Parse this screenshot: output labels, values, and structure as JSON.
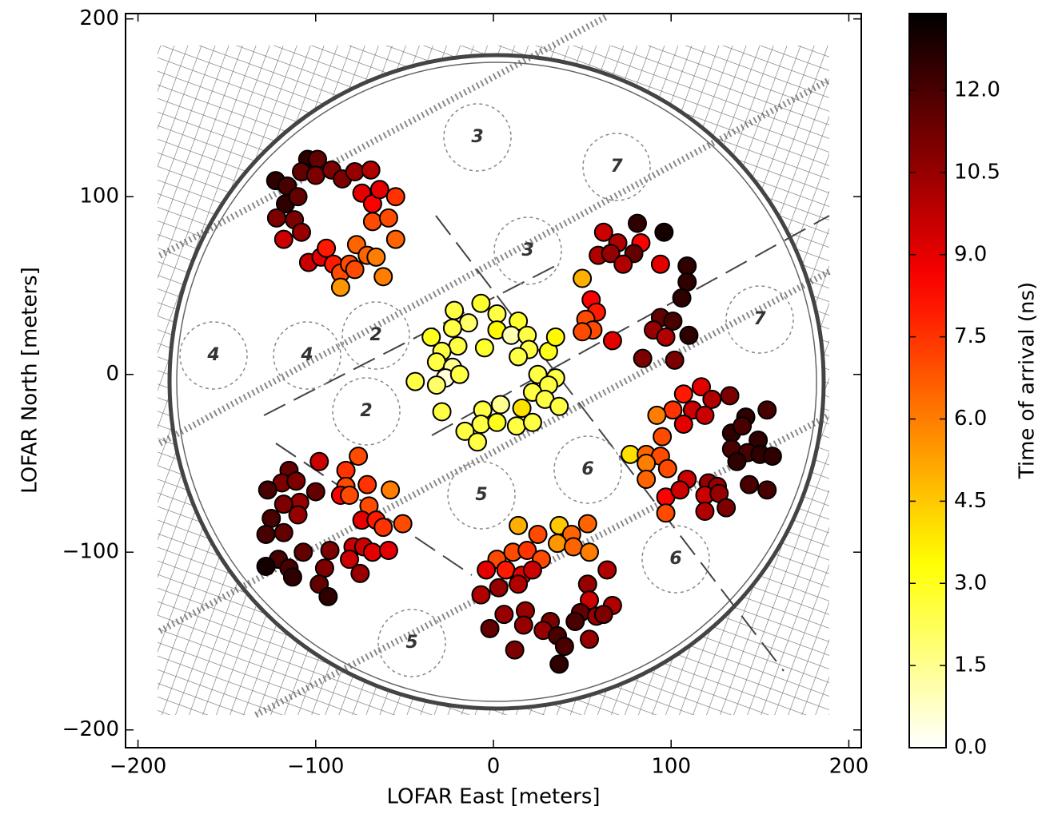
{
  "chart_data": {
    "type": "scatter",
    "xlabel": "LOFAR East [meters]",
    "ylabel": "LOFAR North [meters]",
    "colorbar_label": "Time of arrival (ns)",
    "colormap": "hot_r",
    "clim": [
      0,
      13.4
    ],
    "cticks": [
      {
        "value": 0,
        "label": "0.0"
      },
      1.5,
      {
        "value": 3,
        "label": "3.0"
      },
      4.5,
      {
        "value": 6,
        "label": "6.0"
      },
      7.5,
      {
        "value": 9,
        "label": "9.0"
      },
      10.5,
      {
        "value": 12,
        "label": "12.0"
      }
    ],
    "xlim": [
      -207,
      207
    ],
    "ylim": [
      -210,
      203
    ],
    "xticks": [
      {
        "value": -200,
        "label": "−200"
      },
      {
        "value": -100,
        "label": "−100"
      },
      0,
      100,
      200
    ],
    "yticks": [
      {
        "value": -200,
        "label": "−200"
      },
      {
        "value": -100,
        "label": "−100"
      },
      0,
      100,
      200
    ],
    "map_labels": [
      "3",
      "7",
      "3",
      "4",
      "4",
      "2",
      "2",
      "7",
      "5",
      "6",
      "5",
      "6"
    ],
    "x": [
      -104.5,
      -122.5,
      -116,
      -108,
      -99,
      -100,
      -91,
      -85,
      -78,
      -69,
      -117,
      -110,
      -122,
      -112,
      -108,
      -118,
      -74,
      -68,
      -64,
      -55,
      -68,
      -59,
      -55,
      -104,
      -97,
      -94,
      -90,
      -86,
      -81,
      -77,
      -71,
      -66,
      -78,
      -62,
      -86,
      81,
      96,
      62,
      70,
      83,
      59,
      66,
      79,
      73,
      94,
      109,
      109,
      106,
      50,
      55,
      58,
      52,
      56,
      50,
      67,
      94,
      101,
      90,
      110,
      97,
      84,
      102,
      -22,
      -7,
      2,
      -14,
      14,
      -23,
      2,
      10,
      19,
      -35,
      -20,
      -29,
      -5,
      20,
      31,
      35,
      14,
      -32,
      -23,
      -27,
      -19,
      -44,
      -32,
      25,
      35,
      31,
      22,
      29,
      37,
      4,
      -6,
      16,
      -29,
      -7,
      2,
      13,
      22,
      -16,
      -9,
      117,
      107,
      123,
      133,
      101,
      112,
      92,
      119,
      107,
      142,
      154,
      134,
      140,
      149,
      95,
      77,
      86,
      94,
      134,
      143,
      150,
      157,
      86,
      98,
      137,
      86,
      109,
      121,
      126,
      144,
      154,
      97,
      105,
      119,
      127,
      131,
      97,
      119,
      -98,
      -76,
      -115,
      -83,
      -119,
      -111,
      -100,
      -71,
      -58,
      -127,
      -83,
      -86,
      -81,
      -109,
      -118,
      -70,
      -125,
      -110,
      -74,
      -66,
      -62,
      -51,
      -128,
      -118,
      -92,
      -79,
      -73,
      -68,
      -59,
      -121,
      -107,
      -115,
      -81,
      -75,
      -128,
      -113,
      -95,
      -98,
      -93,
      14,
      37,
      53,
      25,
      44,
      36,
      45,
      54,
      2,
      11,
      19,
      27,
      -4,
      7,
      16,
      22,
      64,
      53,
      3,
      14,
      -7,
      54,
      67,
      6,
      18,
      49,
      58,
      46,
      62,
      32,
      17,
      28,
      -2,
      36,
      54,
      40,
      12,
      37
    ],
    "y": [
      121,
      109,
      106,
      114,
      121,
      112,
      115,
      110,
      114,
      115,
      96,
      100,
      88,
      87,
      80,
      76,
      102,
      96,
      104,
      100,
      86,
      88,
      76,
      63,
      66,
      71,
      62,
      57,
      62,
      73,
      67,
      66,
      59,
      55,
      49,
      85,
      80,
      80,
      74,
      74,
      67,
      68,
      68,
      62,
      62,
      61,
      52,
      43,
      54,
      42,
      35,
      31,
      25,
      24,
      19,
      32,
      30,
      25,
      22,
      21,
      9,
      8,
      36,
      40,
      34,
      29,
      30,
      26,
      25,
      22,
      22,
      21,
      16,
      13,
      15,
      14,
      13,
      21,
      10,
      7,
      4,
      -2,
      0,
      -4,
      -6,
      0,
      -2,
      -6,
      -10,
      -14,
      -18,
      -17,
      -20,
      -19,
      -21,
      -28,
      -27,
      -29,
      -27,
      -32,
      -38,
      -7,
      -11,
      -14,
      -12,
      -20,
      -20,
      -23,
      -23,
      -28,
      -24,
      -20,
      -33,
      -29,
      -37,
      -35,
      -45,
      -45,
      -46,
      -42,
      -44,
      -45,
      -46,
      -50,
      -53,
      -49,
      -59,
      -59,
      -61,
      -63,
      -62,
      -65,
      -69,
      -65,
      -68,
      -67,
      -75,
      -78,
      -77,
      -49,
      -46,
      -54,
      -54,
      -61,
      -60,
      -66,
      -62,
      -65,
      -65,
      -63,
      -68,
      -68,
      -72,
      -73,
      -74,
      -81,
      -79,
      -82,
      -82,
      -86,
      -84,
      -90,
      -89,
      -99,
      -97,
      -97,
      -100,
      -99,
      -104,
      -100,
      -109,
      -104,
      -112,
      -108,
      -114,
      -109,
      -118,
      -125,
      -85,
      -85,
      -84,
      -90,
      -90,
      -95,
      -97,
      -100,
      -104,
      -100,
      -99,
      -104,
      -110,
      -110,
      -113,
      -110,
      -110,
      -118,
      -120,
      -118,
      -124,
      -127,
      -130,
      -135,
      -133,
      -134,
      -136,
      -139,
      -135,
      -139,
      -141,
      -144,
      -143,
      -147,
      -149,
      -153,
      -155,
      -163
    ],
    "values": [
      12.5,
      12.5,
      12,
      11.5,
      11.5,
      11,
      11,
      11,
      10.5,
      10,
      12.5,
      11.5,
      11,
      11,
      10.5,
      9.5,
      9,
      8.5,
      9,
      7.5,
      7,
      7,
      6.5,
      9.5,
      9,
      8,
      8,
      7,
      7,
      6.5,
      6.5,
      6,
      7,
      6,
      5.5,
      12.5,
      13,
      9.5,
      10,
      8.5,
      10,
      10.5,
      11.5,
      10,
      9,
      12.5,
      12.5,
      12.5,
      5,
      8.5,
      8,
      7,
      7,
      7,
      9,
      11.5,
      12,
      10.5,
      12.5,
      10,
      11,
      11,
      2.5,
      2.8,
      2.5,
      2,
      2.8,
      2.5,
      3.5,
      1,
      2.5,
      3,
      2.5,
      2.5,
      2.8,
      2.5,
      3,
      3.5,
      2.5,
      2.5,
      1.5,
      0.5,
      2.5,
      2.5,
      2,
      2.5,
      2.5,
      2.5,
      2.5,
      2.5,
      2.5,
      1.5,
      2.5,
      4,
      2.5,
      2.5,
      3,
      2.5,
      2.5,
      2.5,
      2.5,
      9,
      8,
      10,
      11,
      7.5,
      9.5,
      6,
      9.5,
      9,
      12.5,
      12,
      12.5,
      12,
      12.5,
      7,
      4,
      6.5,
      7,
      12,
      12,
      12.5,
      12.5,
      6,
      7,
      12.5,
      6.5,
      9.5,
      10.5,
      10.5,
      12,
      12,
      8.5,
      9.5,
      9.5,
      10.5,
      11,
      7,
      10,
      9.5,
      7,
      11.5,
      7.5,
      11,
      11,
      11.5,
      7.5,
      6,
      12,
      7,
      8.5,
      7,
      10.5,
      11,
      7,
      12,
      10.5,
      9,
      8,
      7.5,
      7,
      12,
      11.5,
      11,
      9.5,
      9.5,
      9,
      9,
      12,
      11.5,
      12,
      9.5,
      10.5,
      13,
      12.5,
      11,
      11.5,
      12.5,
      5,
      4.5,
      6.5,
      7,
      6.5,
      5.5,
      6.5,
      6,
      7,
      7,
      7.5,
      7,
      9,
      8,
      9,
      9.5,
      10,
      10.5,
      10.5,
      10,
      10,
      9.5,
      10,
      10.5,
      10.5,
      11.5,
      10.5,
      12,
      11,
      11,
      10.5,
      10.5,
      11.5,
      12,
      10.5,
      12,
      11,
      12.5
    ]
  }
}
